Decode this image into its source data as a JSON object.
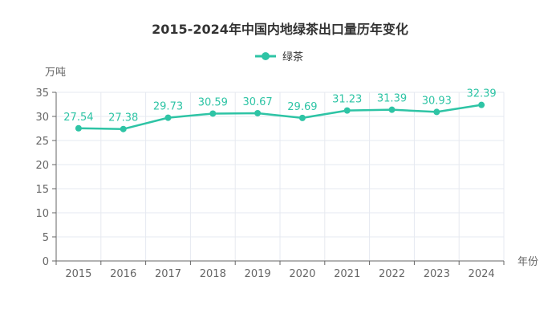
{
  "chart_data": {
    "type": "line",
    "title": "2015-2024年中国内地绿茶出口量历年变化",
    "xlabel": "年份",
    "ylabel": "万吨",
    "categories": [
      "2015",
      "2016",
      "2017",
      "2018",
      "2019",
      "2020",
      "2021",
      "2022",
      "2023",
      "2024"
    ],
    "series": [
      {
        "name": "绿茶",
        "values": [
          27.54,
          27.38,
          29.73,
          30.59,
          30.67,
          29.69,
          31.23,
          31.39,
          30.93,
          32.39
        ],
        "color": "#2ec4a5"
      }
    ],
    "ylim": [
      0,
      35
    ],
    "yticks": [
      0,
      5,
      10,
      15,
      20,
      25,
      30,
      35
    ],
    "legend_position": "top-center",
    "grid": true
  }
}
